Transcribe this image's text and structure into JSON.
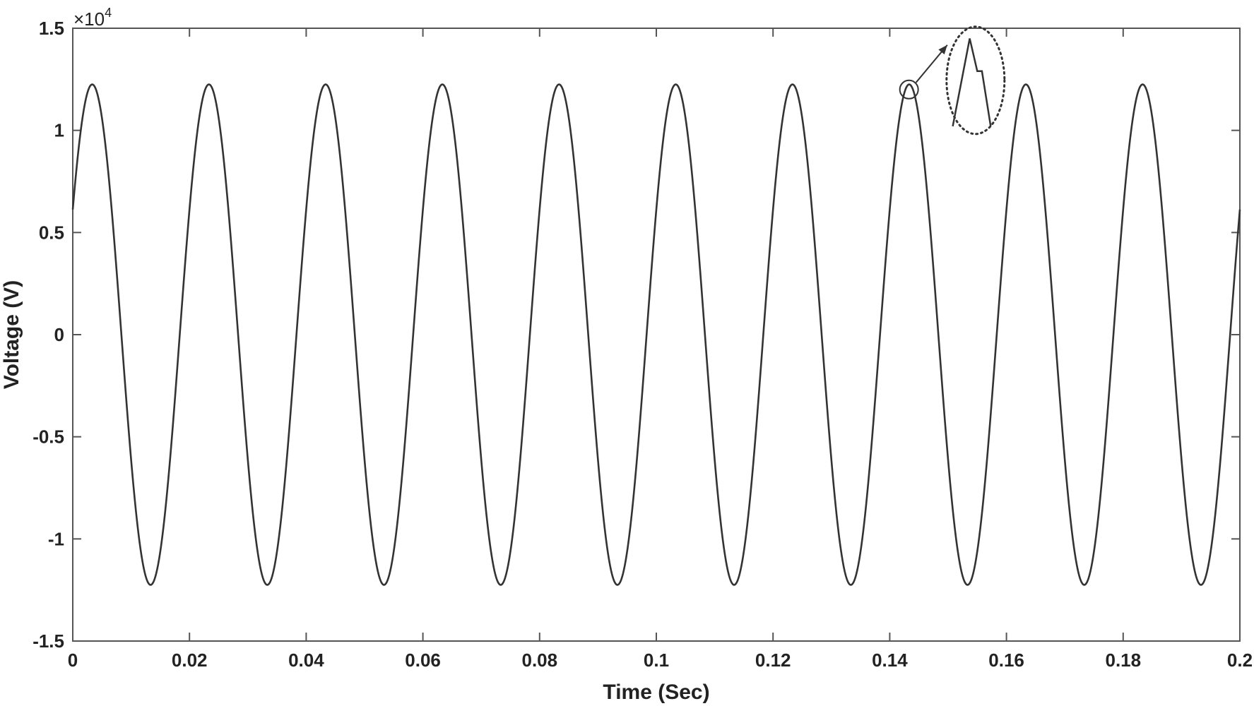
{
  "chart_data": {
    "type": "line",
    "title": "",
    "xlabel": "Time (Sec)",
    "ylabel": "Voltage (V)",
    "y_exponent_base": "×10",
    "y_exponent_power": "4",
    "xlim": [
      0,
      0.2
    ],
    "ylim": [
      -15000,
      15000
    ],
    "x_ticks": [
      0,
      0.02,
      0.04,
      0.06,
      0.08,
      0.1,
      0.12,
      0.14,
      0.16,
      0.18,
      0.2
    ],
    "x_tick_labels": [
      "0",
      "0.02",
      "0.04",
      "0.06",
      "0.08",
      "0.1",
      "0.12",
      "0.14",
      "0.16",
      "0.18",
      "0.2"
    ],
    "y_ticks": [
      -15000,
      -10000,
      -5000,
      0,
      5000,
      10000,
      15000
    ],
    "y_tick_labels": [
      "-1.5",
      "-1",
      "-0.5",
      "0",
      "0.5",
      "1",
      "1.5"
    ],
    "grid": false,
    "series": [
      {
        "amplitude": 12250,
        "frequency_hz": 50,
        "phase_deg": 30,
        "color": "#333333"
      }
    ],
    "annotation": {
      "marker_point": [
        0.1433,
        12000
      ],
      "inset_glyph_points": [
        [
          0.1508,
          10200
        ],
        [
          0.1537,
          14500
        ],
        [
          0.155,
          12900
        ],
        [
          0.1558,
          12900
        ],
        [
          0.1573,
          10200
        ]
      ],
      "inset_center": [
        0.1547,
        12450
      ]
    }
  }
}
